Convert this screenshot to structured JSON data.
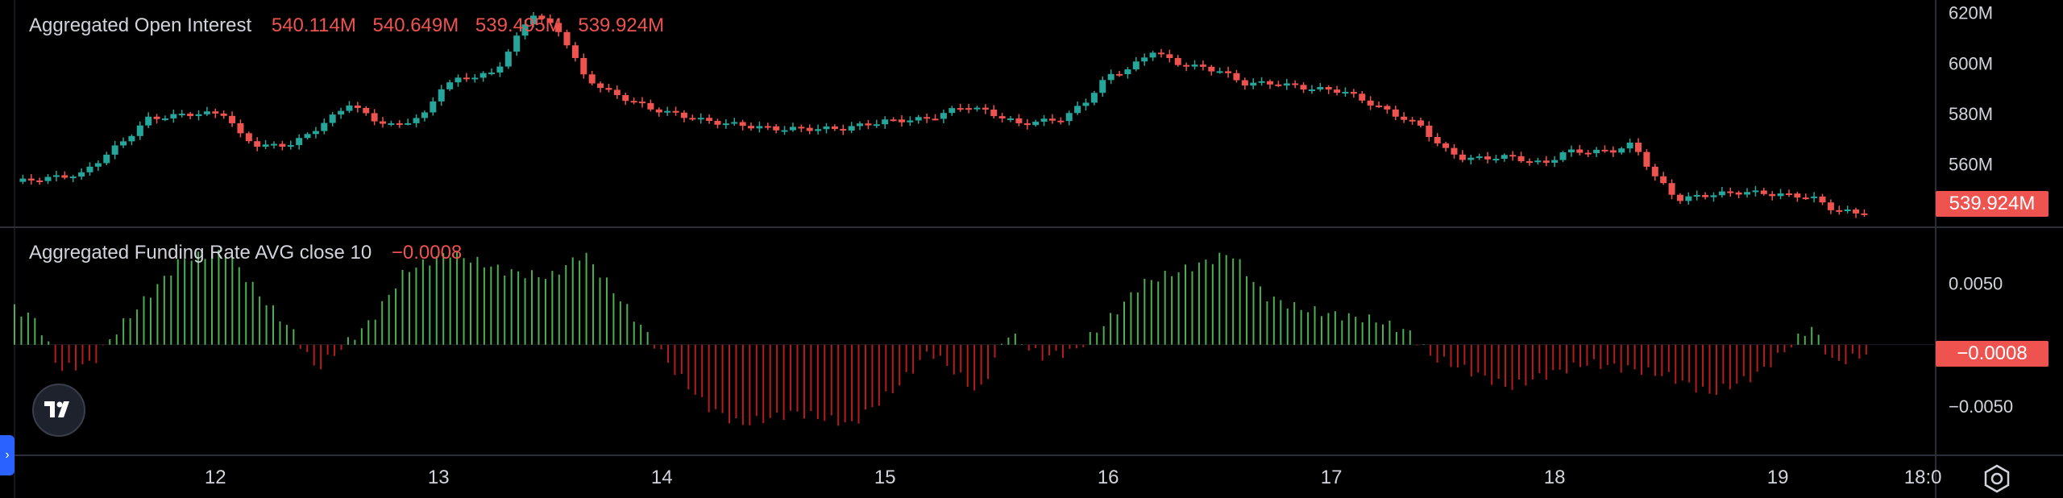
{
  "colors": {
    "up": "#26a69a",
    "down": "#ef5350",
    "hist_up": "#4caf50",
    "hist_down": "#b71c1c",
    "grid": "#2a2e39",
    "text": "#d1d4dc",
    "bg": "#000000"
  },
  "legend": {
    "oi_title": "Aggregated Open Interest",
    "oi_open": "540.114M",
    "oi_high": "540.649M",
    "oi_low": "539.495M",
    "oi_close": "539.924M",
    "fr_title": "Aggregated Funding Rate AVG close 10",
    "fr_value": "−0.0008"
  },
  "price_tags": {
    "oi": "539.924M",
    "fr": "−0.0008"
  },
  "icons": [
    "tradingview-logo-icon",
    "chevron-right-icon",
    "settings-icon"
  ],
  "chart_data": [
    {
      "type": "candlestick",
      "title": "Aggregated Open Interest",
      "y_unit": "M",
      "ylim": [
        535,
        625
      ],
      "y_ticks": [
        "620M",
        "600M",
        "580M",
        "560M"
      ],
      "x_ticks": [
        "12",
        "13",
        "14",
        "15",
        "16",
        "17",
        "18",
        "19",
        "18:0"
      ],
      "x_range": [
        11.1,
        19.7
      ],
      "key_points": [
        [
          11.1,
          553
        ],
        [
          11.4,
          556
        ],
        [
          11.6,
          570
        ],
        [
          11.7,
          578
        ],
        [
          11.9,
          580
        ],
        [
          12.05,
          580
        ],
        [
          12.1,
          572
        ],
        [
          12.2,
          567
        ],
        [
          12.35,
          568
        ],
        [
          12.5,
          577
        ],
        [
          12.6,
          584
        ],
        [
          12.7,
          578
        ],
        [
          12.8,
          575
        ],
        [
          12.95,
          580
        ],
        [
          13.0,
          590
        ],
        [
          13.1,
          594
        ],
        [
          13.25,
          596
        ],
        [
          13.35,
          610
        ],
        [
          13.42,
          620
        ],
        [
          13.55,
          612
        ],
        [
          13.65,
          595
        ],
        [
          13.75,
          589
        ],
        [
          13.95,
          582
        ],
        [
          14.2,
          577
        ],
        [
          14.5,
          574
        ],
        [
          14.8,
          574
        ],
        [
          15.0,
          577
        ],
        [
          15.2,
          578
        ],
        [
          15.35,
          583
        ],
        [
          15.45,
          581
        ],
        [
          15.6,
          576
        ],
        [
          15.8,
          578
        ],
        [
          15.9,
          585
        ],
        [
          16.0,
          595
        ],
        [
          16.1,
          598
        ],
        [
          16.2,
          605
        ],
        [
          16.3,
          600
        ],
        [
          16.5,
          597
        ],
        [
          16.6,
          592
        ],
        [
          16.75,
          592
        ],
        [
          16.9,
          590
        ],
        [
          17.05,
          589
        ],
        [
          17.2,
          583
        ],
        [
          17.4,
          575
        ],
        [
          17.5,
          566
        ],
        [
          17.6,
          562
        ],
        [
          17.8,
          563
        ],
        [
          17.95,
          560
        ],
        [
          18.05,
          565
        ],
        [
          18.25,
          565
        ],
        [
          18.35,
          568
        ],
        [
          18.45,
          555
        ],
        [
          18.55,
          546
        ],
        [
          18.7,
          548
        ],
        [
          18.85,
          549
        ],
        [
          19.0,
          548
        ],
        [
          19.15,
          547
        ],
        [
          19.25,
          542
        ],
        [
          19.4,
          539.9
        ]
      ],
      "last_value": 539.924
    },
    {
      "type": "histogram",
      "title": "Aggregated Funding Rate AVG close 10",
      "ylim": [
        -0.009,
        0.0095
      ],
      "y_ticks": [
        "0.0050",
        "−0.0050"
      ],
      "x_range": [
        11.1,
        19.7
      ],
      "key_points": [
        [
          11.1,
          0.003
        ],
        [
          11.2,
          0.002
        ],
        [
          11.3,
          -0.002
        ],
        [
          11.45,
          -0.0015
        ],
        [
          11.55,
          0.001
        ],
        [
          11.7,
          0.004
        ],
        [
          11.85,
          0.007
        ],
        [
          12.05,
          0.0075
        ],
        [
          12.2,
          0.004
        ],
        [
          12.35,
          0.001
        ],
        [
          12.45,
          -0.002
        ],
        [
          12.55,
          -0.0005
        ],
        [
          12.7,
          0.002
        ],
        [
          12.85,
          0.006
        ],
        [
          13.05,
          0.0075
        ],
        [
          13.3,
          0.006
        ],
        [
          13.5,
          0.0055
        ],
        [
          13.65,
          0.0075
        ],
        [
          13.8,
          0.004
        ],
        [
          13.95,
          0.0005
        ],
        [
          14.05,
          -0.002
        ],
        [
          14.2,
          -0.005
        ],
        [
          14.35,
          -0.0065
        ],
        [
          14.6,
          -0.0055
        ],
        [
          14.85,
          -0.0065
        ],
        [
          15.05,
          -0.0035
        ],
        [
          15.2,
          -0.0005
        ],
        [
          15.3,
          -0.002
        ],
        [
          15.42,
          -0.004
        ],
        [
          15.55,
          0.001
        ],
        [
          15.7,
          -0.001
        ],
        [
          15.85,
          -0.0005
        ],
        [
          16.0,
          0.002
        ],
        [
          16.15,
          0.005
        ],
        [
          16.4,
          0.0065
        ],
        [
          16.55,
          0.0075
        ],
        [
          16.7,
          0.004
        ],
        [
          16.85,
          0.003
        ],
        [
          17.0,
          0.0025
        ],
        [
          17.2,
          0.002
        ],
        [
          17.35,
          0.001
        ],
        [
          17.45,
          -0.001
        ],
        [
          17.6,
          -0.002
        ],
        [
          17.8,
          -0.0035
        ],
        [
          17.95,
          -0.0025
        ],
        [
          18.15,
          -0.0015
        ],
        [
          18.35,
          -0.002
        ],
        [
          18.5,
          -0.0025
        ],
        [
          18.7,
          -0.004
        ],
        [
          18.9,
          -0.0025
        ],
        [
          19.0,
          -0.001
        ],
        [
          19.15,
          0.0015
        ],
        [
          19.25,
          -0.0015
        ],
        [
          19.4,
          -0.0008
        ]
      ],
      "last_value": -0.0008
    }
  ]
}
